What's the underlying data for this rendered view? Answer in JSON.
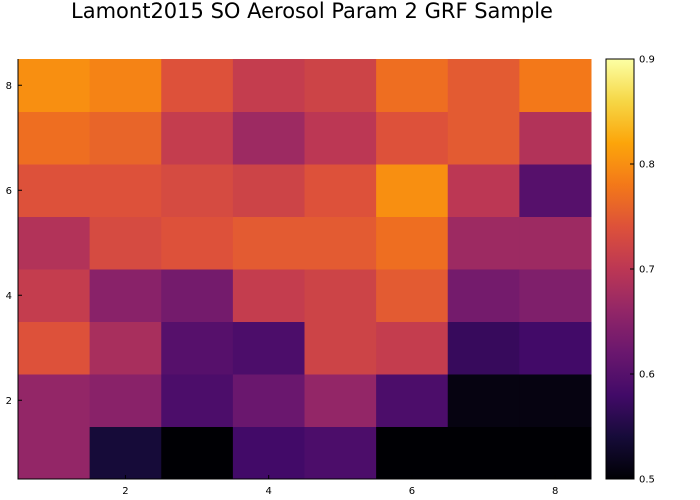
{
  "chart_data": {
    "type": "heatmap",
    "title": "Lamont2015 SO Aerosol Param 2 GRF Sample",
    "xlabel": "",
    "ylabel": "",
    "xlim": [
      0.5,
      8.5
    ],
    "ylim": [
      0.5,
      8.5
    ],
    "x_ticks": [
      2,
      4,
      6,
      8
    ],
    "y_ticks": [
      2,
      4,
      6,
      8
    ],
    "x_tick_labels": [
      "2",
      "4",
      "6",
      "8"
    ],
    "y_tick_labels": [
      "2",
      "4",
      "6",
      "8"
    ],
    "colorbar": {
      "range": [
        0.5,
        0.9
      ],
      "ticks": [
        0.5,
        0.6,
        0.7,
        0.8,
        0.9
      ],
      "tick_labels": [
        "0.5",
        "0.6",
        "0.7",
        "0.8",
        "0.9"
      ],
      "colormap": "inferno"
    },
    "grid": false,
    "z_rows_bottom_to_top": [
      [
        0.66,
        0.54,
        0.5,
        0.58,
        0.59,
        0.5,
        0.5,
        0.5
      ],
      [
        0.66,
        0.65,
        0.59,
        0.62,
        0.66,
        0.59,
        0.51,
        0.51
      ],
      [
        0.74,
        0.68,
        0.6,
        0.59,
        0.72,
        0.71,
        0.57,
        0.58
      ],
      [
        0.71,
        0.65,
        0.63,
        0.71,
        0.72,
        0.75,
        0.63,
        0.64
      ],
      [
        0.69,
        0.73,
        0.74,
        0.75,
        0.75,
        0.77,
        0.67,
        0.67
      ],
      [
        0.74,
        0.74,
        0.73,
        0.72,
        0.74,
        0.8,
        0.7,
        0.6
      ],
      [
        0.77,
        0.76,
        0.71,
        0.67,
        0.7,
        0.74,
        0.75,
        0.69
      ],
      [
        0.8,
        0.79,
        0.74,
        0.71,
        0.72,
        0.77,
        0.75,
        0.78
      ]
    ]
  }
}
